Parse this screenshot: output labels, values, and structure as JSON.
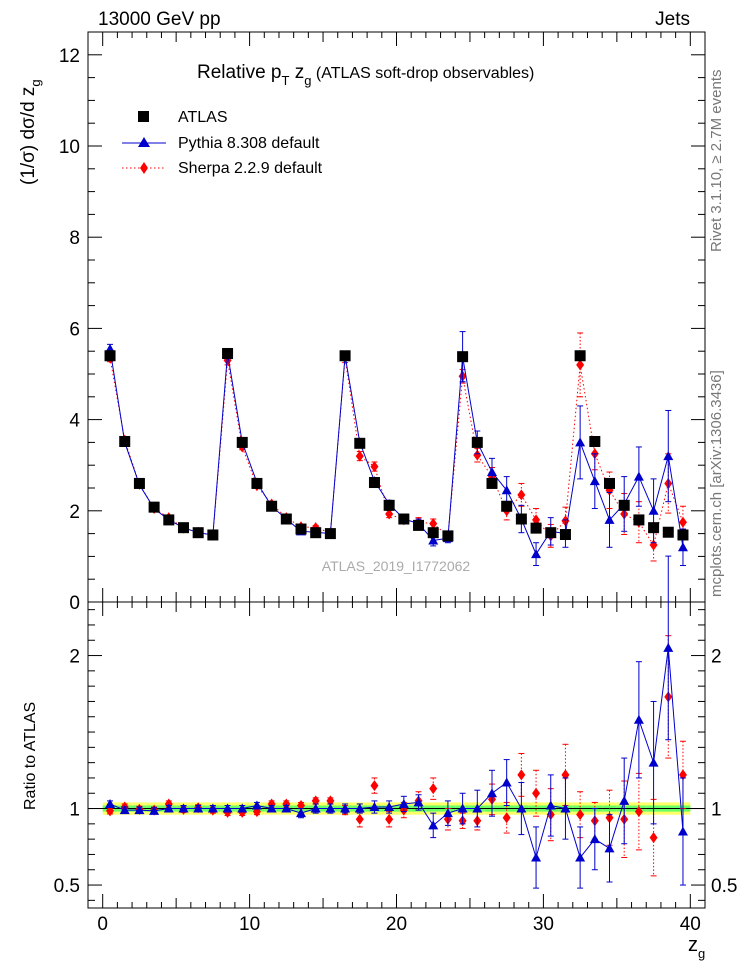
{
  "header": {
    "left": "13000 GeV pp",
    "right": "Jets"
  },
  "side_labels": {
    "rivet": "Rivet 3.1.10, ≥ 2.7M events",
    "mcplots": "mcplots.cern.ch [arXiv:1306.3436]"
  },
  "watermark": "ATLAS_2019_I1772062",
  "chart_data": [
    {
      "type": "scatter",
      "panel": "main",
      "title": "Relative p_T z_g (ATLAS soft-drop observables)",
      "title_parts": {
        "pre": "Relative p",
        "sub1": "T",
        "mid": " z",
        "sub2": "g",
        "post": " (ATLAS soft-drop observables)"
      },
      "ylabel": "(1/σ) dσ/d z_g",
      "ylabel_parts": {
        "main": "(1/σ) dσ/d z",
        "sub": "g"
      },
      "xlim": [
        -1,
        41
      ],
      "ylim": [
        0,
        12.5
      ],
      "yticks": [
        0,
        2,
        4,
        6,
        8,
        10,
        12
      ],
      "legend_position": "top-left",
      "x": [
        0.5,
        1.5,
        2.5,
        3.5,
        4.5,
        5.5,
        6.5,
        7.5,
        8.5,
        9.5,
        10.5,
        11.5,
        12.5,
        13.5,
        14.5,
        15.5,
        16.5,
        17.5,
        18.5,
        19.5,
        20.5,
        21.5,
        22.5,
        23.5,
        24.5,
        25.5,
        26.5,
        27.5,
        28.5,
        29.5,
        30.5,
        31.5,
        32.5,
        33.5,
        34.5,
        35.5,
        36.5,
        37.5,
        38.5,
        39.5
      ],
      "series": [
        {
          "name": "ATLAS",
          "color": "#000000",
          "marker": "square",
          "values": [
            5.4,
            3.52,
            2.6,
            2.08,
            1.8,
            1.63,
            1.52,
            1.47,
            5.45,
            3.5,
            2.6,
            2.1,
            1.82,
            1.6,
            1.52,
            1.5,
            5.4,
            3.48,
            2.62,
            2.12,
            1.82,
            1.68,
            1.52,
            1.45,
            5.38,
            3.5,
            2.6,
            2.1,
            1.82,
            1.62,
            1.52,
            1.48,
            5.4,
            3.52,
            2.6,
            2.12,
            1.8,
            1.63,
            1.53,
            1.47
          ],
          "errors": [
            0.1,
            0.06,
            0.05,
            0.04,
            0.04,
            0.04,
            0.04,
            0.04,
            0.1,
            0.06,
            0.05,
            0.04,
            0.04,
            0.04,
            0.04,
            0.04,
            0.1,
            0.06,
            0.05,
            0.04,
            0.04,
            0.04,
            0.04,
            0.04,
            0.12,
            0.07,
            0.05,
            0.05,
            0.05,
            0.05,
            0.05,
            0.05,
            0.12,
            0.08,
            0.06,
            0.06,
            0.06,
            0.06,
            0.06,
            0.06
          ]
        },
        {
          "name": "Pythia 8.308 default",
          "color": "#0000cc",
          "marker": "triangle",
          "line": "solid",
          "values": [
            5.55,
            3.5,
            2.57,
            2.05,
            1.8,
            1.63,
            1.52,
            1.47,
            5.45,
            3.5,
            2.62,
            2.1,
            1.82,
            1.55,
            1.53,
            1.5,
            5.4,
            3.5,
            2.65,
            2.15,
            1.82,
            1.72,
            1.35,
            1.4,
            5.38,
            3.5,
            2.85,
            2.45,
            1.82,
            1.05,
            1.55,
            1.5,
            3.5,
            2.65,
            1.8,
            2.15,
            2.75,
            2.0,
            3.2,
            1.2
          ],
          "errors": [
            0.1,
            0.06,
            0.05,
            0.04,
            0.04,
            0.04,
            0.04,
            0.04,
            0.1,
            0.06,
            0.05,
            0.05,
            0.05,
            0.05,
            0.05,
            0.05,
            0.1,
            0.08,
            0.08,
            0.08,
            0.08,
            0.1,
            0.12,
            0.1,
            0.55,
            0.25,
            0.3,
            0.3,
            0.3,
            0.25,
            0.3,
            0.3,
            0.8,
            0.6,
            0.6,
            0.6,
            0.65,
            0.7,
            1.0,
            0.4
          ]
        },
        {
          "name": "Sherpa 2.2.9 default",
          "color": "#ff0000",
          "marker": "diamond",
          "line": "dotted",
          "values": [
            5.35,
            3.55,
            2.58,
            2.05,
            1.85,
            1.62,
            1.53,
            1.46,
            5.3,
            3.4,
            2.55,
            2.15,
            1.85,
            1.65,
            1.63,
            1.52,
            5.35,
            3.2,
            2.97,
            1.93,
            1.8,
            1.75,
            1.72,
            1.45,
            4.95,
            3.22,
            2.75,
            2.0,
            2.35,
            1.8,
            1.45,
            1.78,
            5.2,
            3.25,
            2.45,
            1.93,
            1.75,
            1.25,
            2.6,
            1.75
          ],
          "errors": [
            0.08,
            0.05,
            0.05,
            0.04,
            0.04,
            0.04,
            0.04,
            0.04,
            0.1,
            0.06,
            0.05,
            0.05,
            0.05,
            0.05,
            0.05,
            0.05,
            0.1,
            0.1,
            0.1,
            0.08,
            0.08,
            0.1,
            0.1,
            0.1,
            0.15,
            0.15,
            0.2,
            0.2,
            0.25,
            0.25,
            0.25,
            0.3,
            0.7,
            0.35,
            0.4,
            0.45,
            0.45,
            0.35,
            0.65,
            0.35
          ]
        }
      ]
    },
    {
      "type": "scatter",
      "panel": "ratio",
      "ylabel": "Ratio to ATLAS",
      "xlabel": "z_g",
      "xlabel_parts": {
        "main": "z",
        "sub": "g"
      },
      "ylim": [
        0.35,
        2.35
      ],
      "yticks": [
        0.5,
        1,
        2
      ],
      "ytick_labels": [
        "0.5",
        "1",
        "2"
      ],
      "xticks": [
        0,
        10,
        20,
        30,
        40
      ],
      "xtick_labels": [
        "0",
        "10",
        "20",
        "30",
        "40"
      ],
      "reference_band": {
        "inner": 0.02,
        "outer": 0.04,
        "inner_color": "#66ff66",
        "outer_color": "#ffff66"
      },
      "series": [
        {
          "name": "Pythia 8.308 default",
          "color": "#0000cc",
          "values": [
            1.03,
            0.99,
            0.99,
            0.985,
            1.0,
            1.0,
            1.0,
            1.0,
            1.0,
            1.0,
            1.02,
            1.0,
            1.0,
            0.97,
            1.0,
            1.0,
            1.0,
            1.0,
            1.01,
            1.01,
            1.03,
            1.04,
            0.89,
            0.97,
            1.0,
            1.0,
            1.1,
            1.17,
            1.0,
            0.68,
            1.02,
            1.0,
            0.68,
            0.8,
            0.74,
            1.05,
            1.58,
            1.3,
            2.05,
            0.85
          ],
          "errors": [
            0.02,
            0.02,
            0.02,
            0.02,
            0.02,
            0.02,
            0.02,
            0.02,
            0.02,
            0.02,
            0.02,
            0.02,
            0.02,
            0.03,
            0.03,
            0.03,
            0.03,
            0.03,
            0.04,
            0.04,
            0.05,
            0.05,
            0.08,
            0.08,
            0.1,
            0.12,
            0.15,
            0.15,
            0.17,
            0.2,
            0.2,
            0.2,
            0.2,
            0.2,
            0.22,
            0.28,
            0.38,
            0.4,
            0.6,
            0.35
          ]
        },
        {
          "name": "Sherpa 2.2.9 default",
          "color": "#ff0000",
          "values": [
            0.985,
            1.01,
            0.995,
            0.99,
            1.03,
            0.995,
            1.005,
            0.99,
            0.975,
            0.975,
            0.98,
            1.03,
            1.03,
            1.02,
            1.05,
            1.05,
            0.99,
            0.93,
            1.15,
            0.93,
            0.99,
            1.05,
            1.13,
            0.93,
            0.92,
            0.92,
            1.06,
            0.94,
            1.22,
            1.1,
            0.96,
            1.22,
            0.96,
            0.92,
            0.94,
            0.93,
            0.98,
            0.81,
            1.73,
            1.22
          ],
          "errors": [
            0.02,
            0.02,
            0.02,
            0.02,
            0.02,
            0.02,
            0.02,
            0.02,
            0.02,
            0.02,
            0.02,
            0.02,
            0.02,
            0.02,
            0.02,
            0.02,
            0.03,
            0.05,
            0.05,
            0.05,
            0.05,
            0.06,
            0.07,
            0.07,
            0.05,
            0.06,
            0.1,
            0.1,
            0.14,
            0.15,
            0.17,
            0.2,
            0.15,
            0.12,
            0.18,
            0.25,
            0.25,
            0.25,
            0.4,
            0.22
          ]
        }
      ]
    }
  ]
}
